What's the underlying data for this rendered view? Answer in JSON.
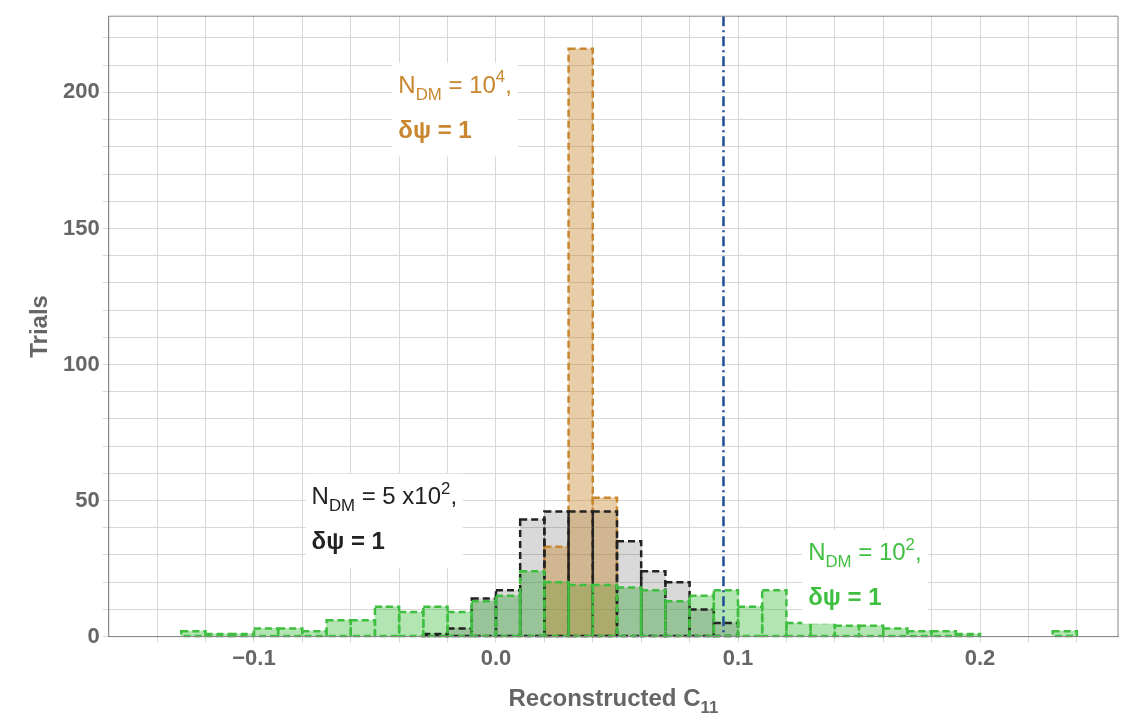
{
  "chart_data": {
    "type": "histogram",
    "xlabel": "Reconstructed C$_{11}$",
    "ylabel": "Trials",
    "bins": [
      -0.13,
      -0.12,
      -0.11,
      -0.1,
      -0.09,
      -0.08,
      -0.07,
      -0.06,
      -0.05,
      -0.04,
      -0.03,
      -0.02,
      -0.01,
      0,
      0.01,
      0.02,
      0.03,
      0.04,
      0.05,
      0.06,
      0.07,
      0.08,
      0.09,
      0.1,
      0.11,
      0.12,
      0.13,
      0.14,
      0.15,
      0.16,
      0.17,
      0.18,
      0.19,
      0.2,
      0.21,
      0.22,
      0.23,
      0.24
    ],
    "series": [
      {
        "name": "N$_{DM}$ = 10$^{4}$, δψ = 1",
        "color": "#c8862e",
        "values": [
          null,
          null,
          null,
          null,
          null,
          null,
          null,
          null,
          null,
          null,
          null,
          null,
          null,
          null,
          null,
          33,
          216,
          51,
          null,
          null,
          null,
          null,
          null,
          null,
          null,
          null,
          null,
          null,
          null,
          null,
          null,
          null,
          null,
          null,
          null,
          null,
          null
        ]
      },
      {
        "name": "N$_{DM}$ = 5 x10$^{2}$, δψ = 1",
        "color": "#222222",
        "values": [
          null,
          null,
          null,
          null,
          null,
          null,
          null,
          null,
          null,
          null,
          1,
          3,
          14,
          17,
          43,
          46,
          46,
          46,
          35,
          24,
          20,
          10,
          5,
          null,
          null,
          null,
          null,
          null,
          null,
          null,
          null,
          null,
          null,
          null,
          null,
          null,
          null
        ]
      },
      {
        "name": "N$_{DM}$ = 10$^{2}$, δψ = 1",
        "color": "#3fbf3f",
        "values": [
          2,
          1,
          1,
          3,
          3,
          2,
          6,
          6,
          11,
          9,
          11,
          9,
          13,
          15,
          24,
          20,
          19,
          19,
          18,
          17,
          13,
          15,
          17,
          11,
          17,
          5,
          5,
          4,
          4,
          3,
          2,
          2,
          1,
          null,
          null,
          null,
          2
        ]
      }
    ],
    "xlim": [
      -0.16,
      0.257
    ],
    "xticks": [
      {
        "value": -0.14,
        "label": null
      },
      {
        "value": -0.12,
        "label": null
      },
      {
        "value": -0.1,
        "label": "−0.1"
      },
      {
        "value": -0.08,
        "label": null
      },
      {
        "value": -0.06,
        "label": null
      },
      {
        "value": -0.04,
        "label": null
      },
      {
        "value": -0.02,
        "label": null
      },
      {
        "value": 0,
        "label": "0.0"
      },
      {
        "value": 0.02,
        "label": null
      },
      {
        "value": 0.04,
        "label": null
      },
      {
        "value": 0.06,
        "label": null
      },
      {
        "value": 0.08,
        "label": null
      },
      {
        "value": 0.1,
        "label": "0.1"
      },
      {
        "value": 0.12,
        "label": null
      },
      {
        "value": 0.14,
        "label": null
      },
      {
        "value": 0.16,
        "label": null
      },
      {
        "value": 0.18,
        "label": null
      },
      {
        "value": 0.2,
        "label": "0.2"
      },
      {
        "value": 0.22,
        "label": null
      },
      {
        "value": 0.24,
        "label": null
      }
    ],
    "ylim": [
      0,
      228
    ],
    "yticks": [
      0,
      {
        "value": 10,
        "label": null
      },
      {
        "value": 20,
        "label": null
      },
      {
        "value": 30,
        "label": null
      },
      {
        "value": 40,
        "label": null
      },
      50,
      {
        "value": 60,
        "label": null
      },
      {
        "value": 70,
        "label": null
      },
      {
        "value": 80,
        "label": null
      },
      {
        "value": 90,
        "label": null
      },
      100,
      {
        "value": 110,
        "label": null
      },
      {
        "value": 120,
        "label": null
      },
      {
        "value": 130,
        "label": null
      },
      {
        "value": 140,
        "label": null
      },
      150,
      {
        "value": 160,
        "label": null
      },
      {
        "value": 170,
        "label": null
      },
      {
        "value": 180,
        "label": null
      },
      {
        "value": 190,
        "label": null
      },
      200,
      {
        "value": 210,
        "label": null
      },
      {
        "value": 220,
        "label": null
      }
    ],
    "ref_lines": [
      {
        "axis": "x",
        "value": 0.094,
        "color": "#1f4e99",
        "line_style": "dashed"
      }
    ],
    "grid": true,
    "legend": false,
    "line_style": "dashed"
  }
}
